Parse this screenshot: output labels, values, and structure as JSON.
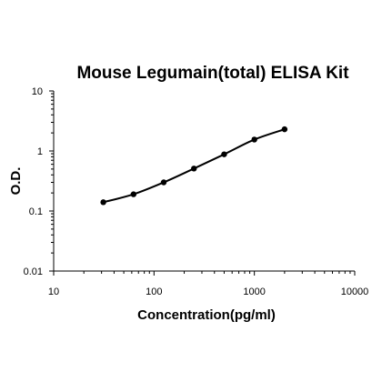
{
  "chart_data": {
    "type": "scatter",
    "title": "Mouse Legumain(total) ELISA Kit",
    "xlabel": "Concentration(pg/ml)",
    "ylabel": "O.D.",
    "xscale": "log",
    "yscale": "log",
    "xlim": [
      10,
      10000
    ],
    "ylim": [
      0.01,
      10
    ],
    "xticks": [
      "10",
      "100",
      "1000",
      "10000"
    ],
    "yticks": [
      "10",
      "1",
      "0.1",
      "0.01"
    ],
    "grid": false,
    "legend": "none",
    "series": [
      {
        "x": [
          31.25,
          62.5,
          125,
          250,
          500,
          1000,
          2000
        ],
        "y": [
          0.14,
          0.19,
          0.3,
          0.51,
          0.88,
          1.55,
          2.3
        ]
      }
    ]
  }
}
